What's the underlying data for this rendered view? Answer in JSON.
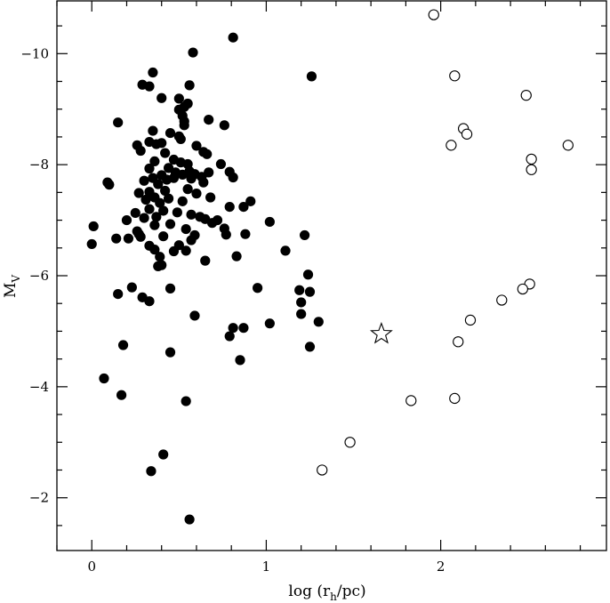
{
  "chart_data": {
    "type": "scatter",
    "title": "",
    "xlabel": "log (r",
    "xlabel_sub": "h",
    "xlabel_tail": "/pc)",
    "ylabel": "M",
    "ylabel_sub": "V",
    "xlim": [
      -0.2,
      2.95
    ],
    "ylim": [
      -1.05,
      -10.95
    ],
    "y_axis_inverted": true,
    "grid": false,
    "x_ticks": [
      {
        "value": 0,
        "label": "0"
      },
      {
        "value": 1,
        "label": "1"
      },
      {
        "value": 2,
        "label": "2"
      }
    ],
    "x_minor_step": 0.2,
    "y_ticks": [
      {
        "value": -10,
        "label": "−10"
      },
      {
        "value": -8,
        "label": "−8"
      },
      {
        "value": -6,
        "label": "−6"
      },
      {
        "value": -4,
        "label": "−4"
      },
      {
        "value": -2,
        "label": "−2"
      }
    ],
    "y_minor_step": 0.5,
    "series": [
      {
        "marker": "filled-circle",
        "points": [
          [
            0.81,
            -10.29
          ],
          [
            0.58,
            -10.02
          ],
          [
            1.26,
            -9.59
          ],
          [
            0.35,
            -9.66
          ],
          [
            0.29,
            -9.44
          ],
          [
            0.33,
            -9.41
          ],
          [
            0.56,
            -9.43
          ],
          [
            0.4,
            -9.2
          ],
          [
            0.5,
            -9.19
          ],
          [
            0.53,
            -9.04
          ],
          [
            0.55,
            -9.1
          ],
          [
            0.5,
            -8.99
          ],
          [
            0.52,
            -8.88
          ],
          [
            0.53,
            -8.78
          ],
          [
            0.67,
            -8.81
          ],
          [
            0.76,
            -8.71
          ],
          [
            0.15,
            -8.76
          ],
          [
            0.53,
            -8.71
          ],
          [
            0.35,
            -8.61
          ],
          [
            0.45,
            -8.57
          ],
          [
            0.5,
            -8.51
          ],
          [
            0.51,
            -8.46
          ],
          [
            0.26,
            -8.35
          ],
          [
            0.33,
            -8.41
          ],
          [
            0.37,
            -8.37
          ],
          [
            0.4,
            -8.39
          ],
          [
            0.6,
            -8.34
          ],
          [
            0.28,
            -8.25
          ],
          [
            0.42,
            -8.21
          ],
          [
            0.64,
            -8.23
          ],
          [
            0.51,
            -8.04
          ],
          [
            0.36,
            -8.06
          ],
          [
            0.47,
            -8.09
          ],
          [
            0.55,
            -8.01
          ],
          [
            0.74,
            -8.01
          ],
          [
            0.66,
            -8.19
          ],
          [
            0.44,
            -7.94
          ],
          [
            0.33,
            -7.93
          ],
          [
            0.56,
            -7.88
          ],
          [
            0.59,
            -7.83
          ],
          [
            0.48,
            -7.86
          ],
          [
            0.52,
            -7.82
          ],
          [
            0.67,
            -7.86
          ],
          [
            0.79,
            -7.87
          ],
          [
            0.81,
            -7.77
          ],
          [
            0.35,
            -7.76
          ],
          [
            0.4,
            -7.81
          ],
          [
            0.43,
            -7.73
          ],
          [
            0.47,
            -7.76
          ],
          [
            0.57,
            -7.75
          ],
          [
            0.63,
            -7.78
          ],
          [
            0.09,
            -7.68
          ],
          [
            0.1,
            -7.64
          ],
          [
            0.3,
            -7.71
          ],
          [
            0.38,
            -7.65
          ],
          [
            0.64,
            -7.68
          ],
          [
            0.55,
            -7.56
          ],
          [
            0.33,
            -7.51
          ],
          [
            0.27,
            -7.49
          ],
          [
            0.42,
            -7.53
          ],
          [
            0.6,
            -7.48
          ],
          [
            0.68,
            -7.41
          ],
          [
            0.36,
            -7.41
          ],
          [
            0.44,
            -7.39
          ],
          [
            0.52,
            -7.34
          ],
          [
            0.31,
            -7.37
          ],
          [
            0.39,
            -7.31
          ],
          [
            0.91,
            -7.34
          ],
          [
            0.87,
            -7.24
          ],
          [
            0.79,
            -7.24
          ],
          [
            0.33,
            -7.2
          ],
          [
            0.41,
            -7.17
          ],
          [
            0.49,
            -7.14
          ],
          [
            0.57,
            -7.1
          ],
          [
            0.37,
            -7.06
          ],
          [
            0.25,
            -7.13
          ],
          [
            0.62,
            -7.06
          ],
          [
            0.65,
            -7.02
          ],
          [
            0.72,
            -7.0
          ],
          [
            0.2,
            -7.0
          ],
          [
            0.3,
            -7.04
          ],
          [
            1.02,
            -6.97
          ],
          [
            0.01,
            -6.89
          ],
          [
            0.36,
            -6.91
          ],
          [
            0.45,
            -6.93
          ],
          [
            0.69,
            -6.95
          ],
          [
            0.54,
            -6.84
          ],
          [
            0.76,
            -6.85
          ],
          [
            0.26,
            -6.8
          ],
          [
            0.88,
            -6.75
          ],
          [
            0.27,
            -6.75
          ],
          [
            0.41,
            -6.71
          ],
          [
            0.59,
            -6.73
          ],
          [
            0.77,
            -6.74
          ],
          [
            1.22,
            -6.73
          ],
          [
            0.14,
            -6.67
          ],
          [
            0.21,
            -6.67
          ],
          [
            0.28,
            -6.7
          ],
          [
            0.57,
            -6.64
          ],
          [
            0.0,
            -6.57
          ],
          [
            0.33,
            -6.54
          ],
          [
            0.5,
            -6.55
          ],
          [
            0.36,
            -6.47
          ],
          [
            0.54,
            -6.45
          ],
          [
            0.47,
            -6.44
          ],
          [
            1.11,
            -6.45
          ],
          [
            0.39,
            -6.34
          ],
          [
            0.83,
            -6.35
          ],
          [
            0.65,
            -6.27
          ],
          [
            0.4,
            -6.19
          ],
          [
            0.38,
            -6.17
          ],
          [
            1.24,
            -6.02
          ],
          [
            0.95,
            -5.78
          ],
          [
            0.23,
            -5.79
          ],
          [
            0.45,
            -5.77
          ],
          [
            1.19,
            -5.74
          ],
          [
            1.25,
            -5.71
          ],
          [
            0.15,
            -5.67
          ],
          [
            0.29,
            -5.61
          ],
          [
            0.33,
            -5.54
          ],
          [
            1.2,
            -5.52
          ],
          [
            0.59,
            -5.28
          ],
          [
            1.2,
            -5.31
          ],
          [
            1.3,
            -5.17
          ],
          [
            1.02,
            -5.14
          ],
          [
            0.81,
            -5.06
          ],
          [
            0.87,
            -5.06
          ],
          [
            0.79,
            -4.91
          ],
          [
            0.18,
            -4.75
          ],
          [
            1.25,
            -4.72
          ],
          [
            0.45,
            -4.62
          ],
          [
            0.85,
            -4.48
          ],
          [
            0.07,
            -4.15
          ],
          [
            0.17,
            -3.85
          ],
          [
            0.54,
            -3.74
          ],
          [
            0.41,
            -2.78
          ],
          [
            0.34,
            -2.48
          ],
          [
            0.56,
            -1.61
          ]
        ]
      },
      {
        "marker": "open-circle",
        "points": [
          [
            1.96,
            -10.7
          ],
          [
            2.08,
            -9.6
          ],
          [
            2.49,
            -9.25
          ],
          [
            2.13,
            -8.65
          ],
          [
            2.15,
            -8.55
          ],
          [
            2.06,
            -8.35
          ],
          [
            2.73,
            -8.35
          ],
          [
            2.52,
            -8.1
          ],
          [
            2.52,
            -7.91
          ],
          [
            2.51,
            -5.85
          ],
          [
            2.47,
            -5.76
          ],
          [
            2.35,
            -5.56
          ],
          [
            2.17,
            -5.2
          ],
          [
            2.1,
            -4.81
          ],
          [
            1.83,
            -3.75
          ],
          [
            2.08,
            -3.79
          ],
          [
            1.48,
            -3.0
          ],
          [
            1.32,
            -2.5
          ]
        ]
      },
      {
        "marker": "open-star",
        "points": [
          [
            1.66,
            -4.95
          ]
        ]
      }
    ]
  }
}
